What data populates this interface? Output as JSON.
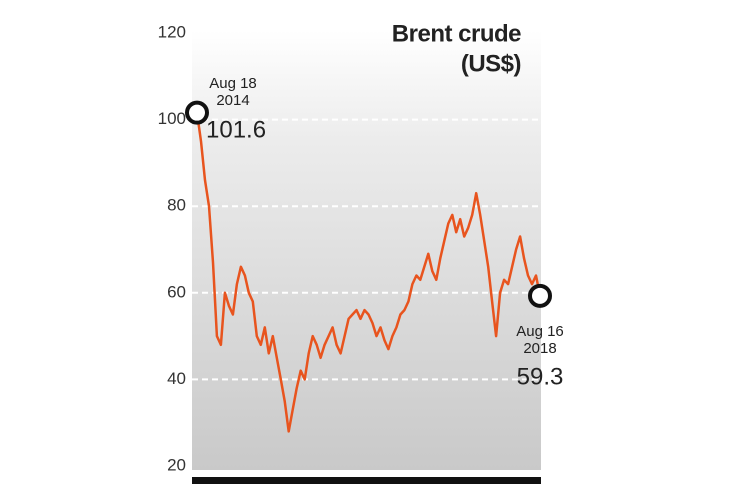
{
  "chart_data": {
    "type": "line",
    "title": "Brent crude",
    "subtitle": "(US$)",
    "color": "#e8541e",
    "values": [
      101.6,
      95,
      86,
      80,
      67,
      50,
      48,
      60,
      57,
      55,
      62,
      66,
      64,
      60,
      58,
      50,
      48,
      52,
      46,
      50,
      45,
      40,
      35,
      28,
      33,
      38,
      42,
      40,
      46,
      50,
      48,
      45,
      48,
      50,
      52,
      48,
      46,
      50,
      54,
      55,
      56,
      54,
      56,
      55,
      53,
      50,
      52,
      49,
      47,
      50,
      52,
      55,
      56,
      58,
      62,
      64,
      63,
      66,
      69,
      65,
      63,
      68,
      72,
      76,
      78,
      74,
      77,
      73,
      75,
      78,
      83,
      78,
      72,
      66,
      58,
      50,
      60,
      63,
      62,
      66,
      70,
      73,
      68,
      64,
      62,
      64,
      59.3
    ],
    "annotations": [
      {
        "lines": [
          "Aug 18",
          "2014"
        ],
        "label": "101.6"
      },
      {
        "lines": [
          "Aug 16",
          "2018"
        ],
        "label": "59.3"
      }
    ],
    "ylim": [
      20,
      120
    ],
    "yticks": [
      20,
      40,
      60,
      80,
      100,
      120
    ],
    "grid": true
  }
}
